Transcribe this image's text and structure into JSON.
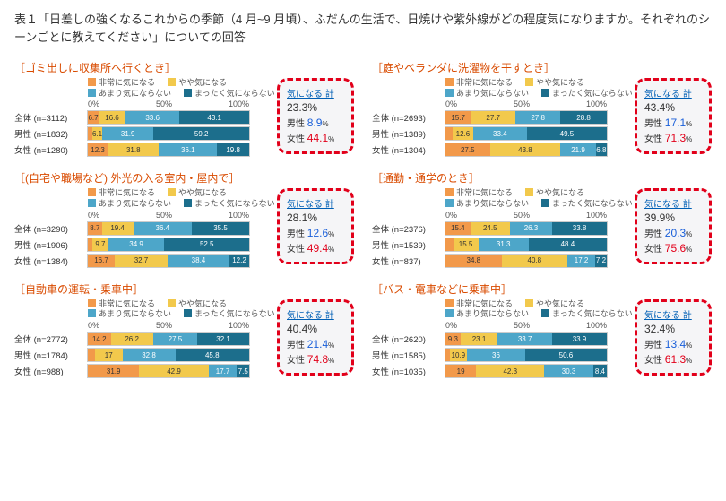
{
  "title": "表１「日差しの強くなるこれからの季節（4 月~9 月頃）、ふだんの生活で、日焼けや紫外線がどの程度気になりますか。それぞれのシーンごとに教えてください」についての回答",
  "legend": {
    "items": [
      "非常に気になる",
      "やや気になる",
      "あまり気にならない",
      "まったく気にならない"
    ],
    "colors": [
      "#f2994a",
      "#f2c94c",
      "#4da6c9",
      "#1c6e8c"
    ]
  },
  "axis": {
    "ticks": [
      "0%",
      "50%",
      "100%"
    ]
  },
  "callout_header": "気になる 計",
  "callout_male_label": "男性",
  "callout_female_label": "女性",
  "groups": [
    "全体",
    "男性",
    "女性"
  ],
  "charts": [
    {
      "title": "［ゴミ出しに収集所へ行くとき］",
      "rows": [
        {
          "label": "全体 (n=3112)",
          "vals": [
            6.7,
            16.6,
            33.6,
            43.1
          ]
        },
        {
          "label": "男性 (n=1832)",
          "vals": [
            2.8,
            6.1,
            31.9,
            59.2
          ]
        },
        {
          "label": "女性 (n=1280)",
          "vals": [
            12.3,
            31.8,
            36.1,
            19.8
          ]
        }
      ],
      "callout": {
        "total": "23.3%",
        "male": "8.9",
        "female": "44.1"
      }
    },
    {
      "title": "［庭やベランダに洗濯物を干すとき］",
      "rows": [
        {
          "label": "全体 (n=2693)",
          "vals": [
            15.7,
            27.7,
            27.8,
            28.8
          ]
        },
        {
          "label": "男性 (n=1389)",
          "vals": [
            4.5,
            12.6,
            33.4,
            49.5
          ]
        },
        {
          "label": "女性 (n=1304)",
          "vals": [
            27.5,
            43.8,
            21.9,
            6.8
          ]
        }
      ],
      "callout": {
        "total": "43.4%",
        "male": "17.1",
        "female": "71.3"
      }
    },
    {
      "title": "［(自宅や職場など) 外光の入る室内・屋内で］",
      "rows": [
        {
          "label": "全体 (n=3290)",
          "vals": [
            8.7,
            19.4,
            36.4,
            35.5
          ]
        },
        {
          "label": "男性 (n=1906)",
          "vals": [
            2.9,
            9.7,
            34.9,
            52.5
          ]
        },
        {
          "label": "女性 (n=1384)",
          "vals": [
            16.7,
            32.7,
            38.4,
            12.2
          ]
        }
      ],
      "callout": {
        "total": "28.1%",
        "male": "12.6",
        "female": "49.4"
      }
    },
    {
      "title": "［通勤・通学のとき］",
      "rows": [
        {
          "label": "全体 (n=2376)",
          "vals": [
            15.4,
            24.5,
            26.3,
            33.8
          ]
        },
        {
          "label": "男性 (n=1539)",
          "vals": [
            4.8,
            15.5,
            31.3,
            48.4
          ]
        },
        {
          "label": "女性 (n=837)",
          "vals": [
            34.8,
            40.8,
            17.2,
            7.2
          ]
        }
      ],
      "callout": {
        "total": "39.9%",
        "male": "20.3",
        "female": "75.6"
      }
    },
    {
      "title": "［自動車の運転・乗車中］",
      "rows": [
        {
          "label": "全体 (n=2772)",
          "vals": [
            14.2,
            26.2,
            27.5,
            32.1
          ]
        },
        {
          "label": "男性 (n=1784)",
          "vals": [
            4.4,
            17.0,
            32.8,
            45.8
          ]
        },
        {
          "label": "女性 (n=988)",
          "vals": [
            31.9,
            42.9,
            17.7,
            7.5
          ]
        }
      ],
      "callout": {
        "total": "40.4%",
        "male": "21.4",
        "female": "74.8"
      }
    },
    {
      "title": "［バス・電車などに乗車中］",
      "rows": [
        {
          "label": "全体 (n=2620)",
          "vals": [
            9.3,
            23.1,
            33.7,
            33.9
          ]
        },
        {
          "label": "男性 (n=1585)",
          "vals": [
            2.5,
            10.9,
            36.0,
            50.6
          ]
        },
        {
          "label": "女性 (n=1035)",
          "vals": [
            19.0,
            42.3,
            30.3,
            8.4
          ]
        }
      ],
      "callout": {
        "total": "32.4%",
        "male": "13.4",
        "female": "61.3"
      }
    }
  ]
}
